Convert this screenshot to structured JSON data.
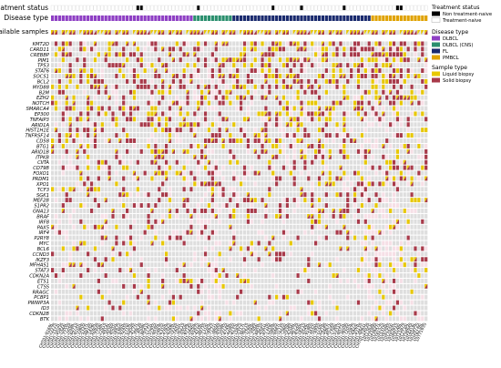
{
  "chart_data": {
    "type": "heatmap",
    "title": "",
    "track_labels": {
      "treatment": "Treatment status",
      "disease": "Disease type",
      "samples": "Available samples"
    },
    "legend": {
      "treatment_title": "Treatment status",
      "treatment_items": [
        {
          "label": "Non treatment-naive",
          "color": "#000000"
        },
        {
          "label": "Treatment-naive",
          "color": "#ffffff"
        }
      ],
      "disease_title": "Disease type",
      "disease_items": [
        {
          "label": "DLBCL",
          "color": "#8e3fc4"
        },
        {
          "label": "DLBCL (CNS)",
          "color": "#2a8f6e"
        },
        {
          "label": "FL",
          "color": "#1a2a6e"
        },
        {
          "label": "PMBCL",
          "color": "#e0a200"
        }
      ],
      "sample_title": "Sample type",
      "sample_items": [
        {
          "label": "Liquid biopsy",
          "color": "#e8c800"
        },
        {
          "label": "Solid biopsy",
          "color": "#a83a4a"
        }
      ]
    },
    "genes": [
      "KMT2D",
      "CARD11",
      "CREBBP",
      "PIM1",
      "TP53",
      "STAT6",
      "SOCS1",
      "BCL2",
      "MYD88",
      "B2M",
      "EZH2",
      "NOTCH",
      "SMARCA4",
      "EP300",
      "TNFAIP3",
      "ARID1A",
      "HIST1H1E",
      "TNFRSF14",
      "CD58",
      "BTG1",
      "ARID1B",
      "ITPKB",
      "CIITA",
      "CD79B",
      "FOXO1",
      "PRDM1",
      "XPO1",
      "TCF3",
      "SGK1",
      "MEF2B",
      "S1PR2",
      "GNA13",
      "BRAF",
      "IRF8",
      "PAX5",
      "IRF4",
      "P2RY8",
      "MYC",
      "BCL6",
      "CCND3",
      "IKZF3",
      "MFHAS1",
      "STAT3",
      "CDKN2A",
      "ETS1",
      "CTSS",
      "RRAGC",
      "PCBP1",
      "PWWP3A",
      "ID3",
      "CDKN2B",
      "BTK"
    ],
    "samples": [
      "CHT01-9169L",
      "CHT01-2227S",
      "CHT01-3372L",
      "CHT01-4583S",
      "CHT01-1044L",
      "CHT01-7735S",
      "CHT01-2608L",
      "CHT01-6471S",
      "CHT01-9102L",
      "CHT01-3390S",
      "CHT01-5247L",
      "CHT01-8816S",
      "CHT01-1429L",
      "CHT01-6093S",
      "CHT01-7758L",
      "CHT01-2281S",
      "CHT01-4914L",
      "CHT01-3036S",
      "CHT01-8502L",
      "CHT01-1667S",
      "CHT01-5380L",
      "CHT01-9245S",
      "CHT01-2719L",
      "CHT01-6854S",
      "CHT01-4127L",
      "CHT01-7963S",
      "CHT01-3508L",
      "CHT01-8641S",
      "CHT01-1172L",
      "CHT01-5795S",
      "CHT01-9036L",
      "CHT01-2463S",
      "CHT01-6310L",
      "CHT01-4782S",
      "CHT01-8269L",
      "CHT01-1935S",
      "CHT01-7402L",
      "CHT01-3621S",
      "CHT01-5058L",
      "CHT01-9714S",
      "CHT01-2846L",
      "CHT01-6587S",
      "CHT01-4239L",
      "CHT01-8975S",
      "CHT01-1310L",
      "CHT01-5462S",
      "CHT01-7121L",
      "CHT01-3894S",
      "CHT01-9358L",
      "CHT01-2075S",
      "CHT01-6749L",
      "CHT01-4406S",
      "CHT01-8133L",
      "CHT01-1582S",
      "CHT01-5217L",
      "CHT01-9621S",
      "CHT01-3760L",
      "CHT01-7048S",
      "CHT01-2394L",
      "CHT01-6825S",
      "CHT01-4581L",
      "CHT01-8710S",
      "CHT01-1259L",
      "CHT01-5903S",
      "CHT01-9487L",
      "CHT01-3115S",
      "CHT01-7566L",
      "CHT01-2938S",
      "CHT01-6204L",
      "CHT01-4673S",
      "CHT01-8390L",
      "CHT01-1821S",
      "CHT01-5549L",
      "CHT01-9186S",
      "CHT01-3432L",
      "CHT01-7695S",
      "CHT01-2150L",
      "CHT01-6418S",
      "CHT01-4967L",
      "CHT01-8524S",
      "CHT01-1786L",
      "CHT01-5331S",
      "CHT01-9072L",
      "CHT01-3659S",
      "CHT01-7203L",
      "CHT01-2587S",
      "CHT01-6940L",
      "CHT01-4315S",
      "CHT01-8861L",
      "CHT01-1403S",
      "10T1263L",
      "10T2589S",
      "10T3947L",
      "10T4152S",
      "10T5318L",
      "10T6705S",
      "10T7024L",
      "10T8391S",
      "10T9146L",
      "10T1587S",
      "10T2730L",
      "10T3864S",
      "10T4419L",
      "10T5972S",
      "10T6238L",
      "10T7193S"
    ],
    "treatment_status": [
      0,
      0,
      0,
      0,
      0,
      0,
      0,
      0,
      0,
      0,
      0,
      0,
      0,
      0,
      0,
      0,
      0,
      0,
      0,
      0,
      0,
      0,
      0,
      0,
      1,
      1,
      0,
      0,
      0,
      0,
      0,
      0,
      0,
      0,
      0,
      0,
      0,
      0,
      0,
      0,
      0,
      1,
      0,
      0,
      0,
      0,
      0,
      0,
      0,
      0,
      0,
      0,
      0,
      0,
      0,
      0,
      0,
      0,
      0,
      0,
      0,
      0,
      1,
      0,
      0,
      0,
      0,
      0,
      0,
      0,
      1,
      0,
      0,
      0,
      0,
      0,
      0,
      0,
      0,
      0,
      0,
      0,
      1,
      0,
      0,
      0,
      0,
      0,
      0,
      0,
      0,
      0,
      0,
      0,
      0,
      0,
      0,
      1,
      1,
      0,
      0,
      0,
      0,
      0,
      0,
      0
    ],
    "disease_segments": [
      {
        "label": "DLBCL",
        "count": 40
      },
      {
        "label": "DLBCL (CNS)",
        "count": 11
      },
      {
        "label": "FL",
        "count": 39
      },
      {
        "label": "PMBCL",
        "count": 16
      }
    ]
  }
}
